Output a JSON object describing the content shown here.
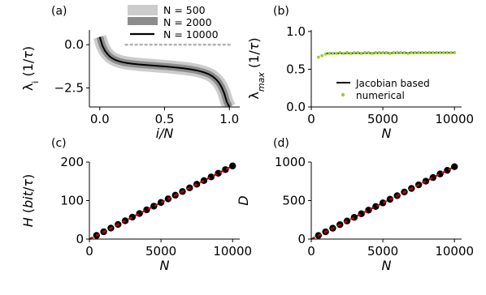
{
  "chart_data": [
    {
      "panel_label": "(a)",
      "type": "line",
      "xlabel": "i/N",
      "ylabel": "λ_i (1/τ)",
      "xlim": [
        -0.08,
        1.08
      ],
      "ylim": [
        -3.6,
        0.85
      ],
      "xticks": [
        0.0,
        0.5,
        1.0
      ],
      "xtick_labels": [
        "0.0",
        "0.5",
        "1.0"
      ],
      "yticks": [
        0.0,
        -2.5
      ],
      "ytick_labels": [
        "0.0",
        "−2.5"
      ],
      "reference_line": {
        "y": 0.0,
        "style": "dotted",
        "color": "#b3b3b3"
      },
      "legend": {
        "placement": "top-right",
        "frame": false
      },
      "series": [
        {
          "name": "N = 500",
          "color": "#cccccc",
          "band_halfwidth": 0.38,
          "x": [
            0.0,
            0.02,
            0.04,
            0.06,
            0.08,
            0.1,
            0.12,
            0.15,
            0.18,
            0.21,
            0.25,
            0.3,
            0.35,
            0.4,
            0.45,
            0.5,
            0.55,
            0.6,
            0.65,
            0.7,
            0.75,
            0.8,
            0.84,
            0.87,
            0.9,
            0.92,
            0.94,
            0.96,
            0.98,
            1.0
          ],
          "y": [
            0.45,
            -0.05,
            -0.35,
            -0.55,
            -0.7,
            -0.8,
            -0.88,
            -0.96,
            -1.02,
            -1.06,
            -1.1,
            -1.14,
            -1.17,
            -1.2,
            -1.23,
            -1.26,
            -1.29,
            -1.33,
            -1.37,
            -1.42,
            -1.49,
            -1.59,
            -1.7,
            -1.83,
            -2.02,
            -2.2,
            -2.45,
            -2.8,
            -3.3,
            -3.6
          ]
        },
        {
          "name": "N = 2000",
          "color": "#8c8c8c",
          "band_halfwidth": 0.2,
          "x": [
            0.0,
            0.02,
            0.04,
            0.06,
            0.08,
            0.1,
            0.12,
            0.15,
            0.18,
            0.21,
            0.25,
            0.3,
            0.35,
            0.4,
            0.45,
            0.5,
            0.55,
            0.6,
            0.65,
            0.7,
            0.75,
            0.8,
            0.84,
            0.87,
            0.9,
            0.92,
            0.94,
            0.96,
            0.98,
            1.0
          ],
          "y": [
            0.45,
            -0.05,
            -0.35,
            -0.55,
            -0.7,
            -0.8,
            -0.88,
            -0.96,
            -1.02,
            -1.06,
            -1.1,
            -1.14,
            -1.17,
            -1.2,
            -1.23,
            -1.26,
            -1.29,
            -1.33,
            -1.37,
            -1.42,
            -1.49,
            -1.59,
            -1.7,
            -1.83,
            -2.02,
            -2.2,
            -2.45,
            -2.8,
            -3.3,
            -3.6
          ]
        },
        {
          "name": "N = 10000",
          "color": "#000000",
          "x": [
            0.0,
            0.02,
            0.04,
            0.06,
            0.08,
            0.1,
            0.12,
            0.15,
            0.18,
            0.21,
            0.25,
            0.3,
            0.35,
            0.4,
            0.45,
            0.5,
            0.55,
            0.6,
            0.65,
            0.7,
            0.75,
            0.8,
            0.84,
            0.87,
            0.9,
            0.92,
            0.94,
            0.96,
            0.98,
            1.0
          ],
          "y": [
            0.45,
            -0.05,
            -0.35,
            -0.55,
            -0.7,
            -0.8,
            -0.88,
            -0.96,
            -1.02,
            -1.06,
            -1.1,
            -1.14,
            -1.17,
            -1.2,
            -1.23,
            -1.26,
            -1.29,
            -1.33,
            -1.37,
            -1.42,
            -1.49,
            -1.59,
            -1.7,
            -1.83,
            -2.02,
            -2.2,
            -2.45,
            -2.8,
            -3.3,
            -3.6
          ]
        }
      ]
    },
    {
      "panel_label": "(b)",
      "type": "line",
      "xlabel": "N",
      "ylabel": "λ_max (1/τ)",
      "xlim": [
        0,
        10500
      ],
      "ylim": [
        0,
        1.02
      ],
      "xticks": [
        0,
        5000,
        10000
      ],
      "xtick_labels": [
        "0",
        "5000",
        "10000"
      ],
      "yticks": [
        0.0,
        0.5,
        1.0
      ],
      "ytick_labels": [
        "0.0",
        "0.5",
        "1.0"
      ],
      "legend": {
        "placement": "lower-center",
        "frame": false
      },
      "series": [
        {
          "name": "Jacobian based",
          "style": "line",
          "color": "#000000",
          "x": [
            1000,
            10000
          ],
          "y": [
            0.71,
            0.72
          ]
        },
        {
          "name": "numerical",
          "style": "markers",
          "color": "#9acd32",
          "x": [
            500,
            750,
            1000,
            1250,
            1500,
            1750,
            2000,
            2250,
            2500,
            2750,
            3000,
            3250,
            3500,
            3750,
            4000,
            4250,
            4500,
            4750,
            5000,
            5250,
            5500,
            5750,
            6000,
            6250,
            6500,
            6750,
            7000,
            7250,
            7500,
            7750,
            8000,
            8250,
            8500,
            8750,
            9000,
            9250,
            9500,
            9750,
            10000
          ],
          "y": [
            0.66,
            0.68,
            0.7,
            0.71,
            0.71,
            0.71,
            0.72,
            0.71,
            0.72,
            0.71,
            0.72,
            0.72,
            0.71,
            0.72,
            0.72,
            0.71,
            0.72,
            0.72,
            0.72,
            0.72,
            0.71,
            0.72,
            0.72,
            0.72,
            0.72,
            0.71,
            0.72,
            0.72,
            0.72,
            0.72,
            0.72,
            0.72,
            0.72,
            0.72,
            0.72,
            0.72,
            0.72,
            0.72,
            0.72
          ]
        }
      ]
    },
    {
      "panel_label": "(c)",
      "type": "scatter",
      "xlabel": "N",
      "ylabel": "H (bit/τ)",
      "xlim": [
        0,
        10500
      ],
      "ylim": [
        0,
        200
      ],
      "xticks": [
        0,
        5000,
        10000
      ],
      "xtick_labels": [
        "0",
        "5000",
        "10000"
      ],
      "yticks": [
        0,
        100,
        200
      ],
      "ytick_labels": [
        "0",
        "100",
        "200"
      ],
      "series": [
        {
          "style": "markers",
          "color": "#000000",
          "x": [
            500,
            1000,
            1500,
            2000,
            2500,
            3000,
            3500,
            4000,
            4500,
            5000,
            5500,
            6000,
            6500,
            7000,
            7500,
            8000,
            8500,
            9000,
            9500,
            10000
          ],
          "y": [
            9.5,
            19,
            28.5,
            38,
            47.5,
            57,
            66.5,
            76,
            85.5,
            95,
            104.5,
            114,
            123.5,
            133,
            142.5,
            152,
            161.5,
            171,
            180.5,
            190
          ]
        },
        {
          "style": "line",
          "color": "#cc0000",
          "x": [
            0,
            10000
          ],
          "y": [
            0,
            190
          ]
        }
      ]
    },
    {
      "panel_label": "(d)",
      "type": "scatter",
      "xlabel": "N",
      "ylabel": "D",
      "xlim": [
        0,
        10500
      ],
      "ylim": [
        0,
        1000
      ],
      "xticks": [
        0,
        5000,
        10000
      ],
      "xtick_labels": [
        "0",
        "5000",
        "10000"
      ],
      "yticks": [
        0,
        500,
        1000
      ],
      "ytick_labels": [
        "0",
        "500",
        "1000"
      ],
      "series": [
        {
          "style": "markers",
          "color": "#000000",
          "x": [
            500,
            1000,
            1500,
            2000,
            2500,
            3000,
            3500,
            4000,
            4500,
            5000,
            5500,
            6000,
            6500,
            7000,
            7500,
            8000,
            8500,
            9000,
            9500,
            10000
          ],
          "y": [
            47,
            94,
            141,
            188,
            235,
            282,
            329,
            376,
            423,
            470,
            517,
            564,
            611,
            658,
            705,
            752,
            799,
            846,
            893,
            940
          ]
        },
        {
          "style": "line",
          "color": "#cc0000",
          "x": [
            0,
            10000
          ],
          "y": [
            0,
            940
          ]
        }
      ]
    }
  ]
}
